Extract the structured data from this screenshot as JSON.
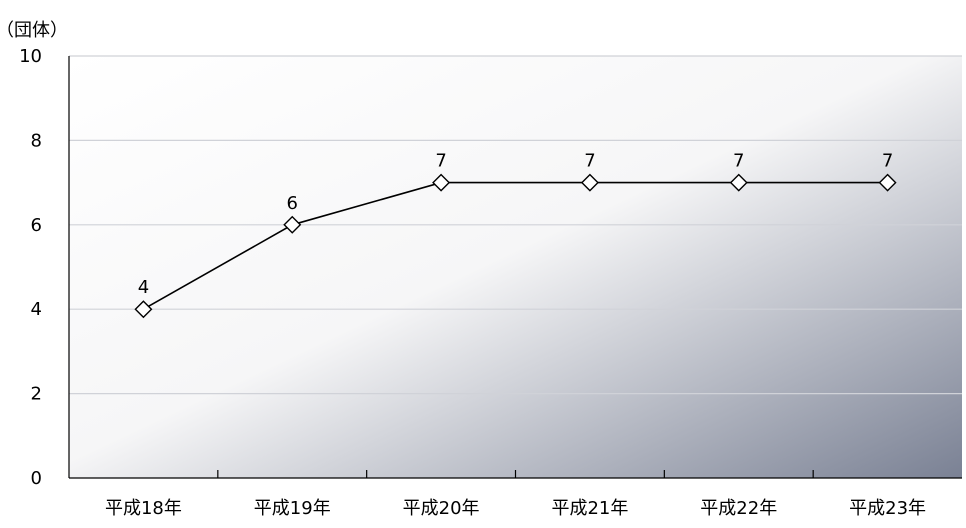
{
  "chart_data": {
    "type": "line",
    "title": "",
    "unit_label": "（団体）",
    "xlabel": "",
    "ylabel": "",
    "categories": [
      "平成18年",
      "平成19年",
      "平成20年",
      "平成21年",
      "平成22年",
      "平成23年"
    ],
    "series": [
      {
        "values": [
          4,
          6,
          7,
          7,
          7,
          7
        ],
        "marker": "diamond",
        "line_color": "#000000",
        "marker_fill": "#ffffff",
        "data_labels": [
          "4",
          "6",
          "7",
          "7",
          "7",
          "7"
        ]
      }
    ],
    "ylim": [
      0,
      10
    ],
    "yticks": [
      0,
      2,
      4,
      6,
      8,
      10
    ],
    "grid": true,
    "legend": "none",
    "colors": {
      "plot_gradient_light": "#ffffff",
      "plot_gradient_dark": "#7a8194",
      "gridline": "#d0d2d8",
      "axis": "#000000"
    }
  }
}
